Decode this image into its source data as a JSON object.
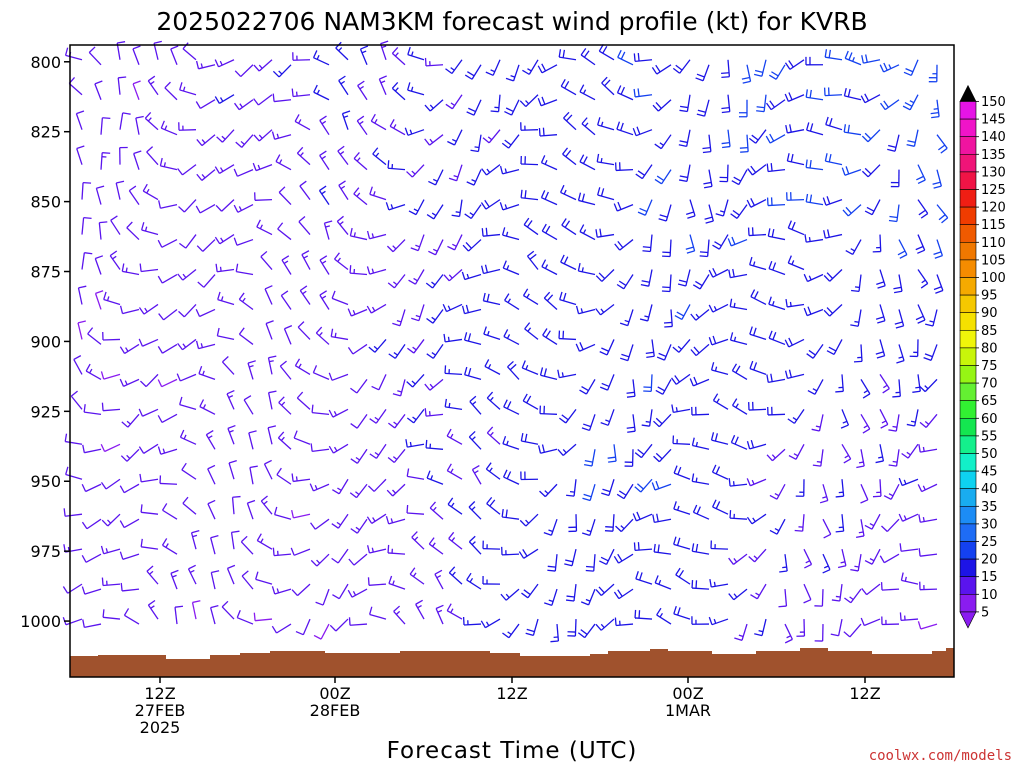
{
  "chart_data": {
    "type": "wind-barb-time-height",
    "title": "2025022706 NAM3KM forecast wind profile (kt) for KVRB",
    "xlabel": "Forecast Time (UTC)",
    "ylabel": "",
    "y_axis": {
      "range": [
        1020,
        794
      ],
      "ticks": [
        "800",
        "825",
        "850",
        "875",
        "900",
        "925",
        "950",
        "975",
        "1000"
      ]
    },
    "x_axis": {
      "ticks": [
        {
          "time": "12Z",
          "date": "27FEB",
          "year": "2025"
        },
        {
          "time": "00Z",
          "date": "28FEB",
          "year": ""
        },
        {
          "time": "12Z",
          "date": "",
          "year": ""
        },
        {
          "time": "00Z",
          "date": "1MAR",
          "year": ""
        },
        {
          "time": "12Z",
          "date": "",
          "year": ""
        }
      ]
    },
    "colorbar": {
      "unit": "kt",
      "levels": [
        5,
        10,
        15,
        20,
        25,
        30,
        35,
        40,
        45,
        50,
        55,
        60,
        65,
        70,
        75,
        80,
        85,
        90,
        95,
        100,
        105,
        110,
        115,
        120,
        125,
        130,
        135,
        140,
        145,
        150
      ],
      "colors": [
        "#8a1cf0",
        "#5a14ee",
        "#1d14e6",
        "#1441f0",
        "#1e6cf5",
        "#1c8cf5",
        "#19acf0",
        "#0ed2f0",
        "#12f0c8",
        "#14f08c",
        "#14e650",
        "#32f032",
        "#64f032",
        "#96f514",
        "#c8f50a",
        "#f0f50a",
        "#f5e100",
        "#f5c800",
        "#f5aa00",
        "#f58c00",
        "#f07800",
        "#f05a00",
        "#f03c00",
        "#f01e14",
        "#f01446",
        "#f01478",
        "#f014a0",
        "#f014c8",
        "#e614e6"
      ],
      "overflow_color": "#000000"
    },
    "wind_speed_range_kt": [
      5,
      30
    ],
    "terrain_color": "#a0522d",
    "credit": "coolwx.com/models"
  }
}
